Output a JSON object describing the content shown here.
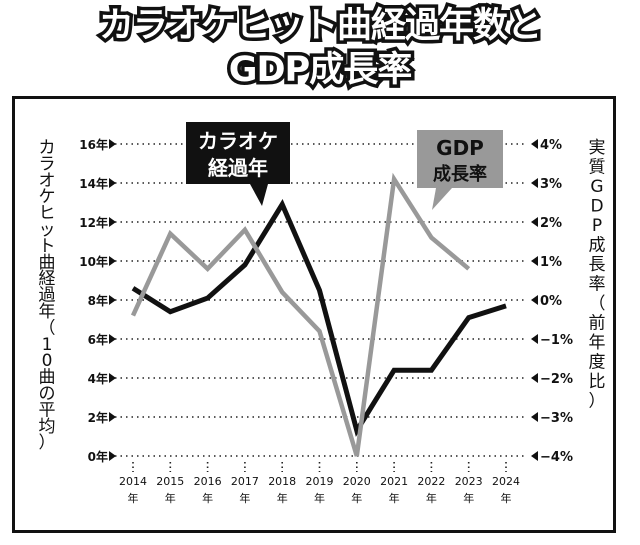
{
  "title": {
    "line1": "カラオケヒット曲経過年数と",
    "line2": "GDP成長率"
  },
  "chart_data": {
    "type": "line",
    "title": "カラオケヒット曲経過年数とGDP成長率",
    "categories": [
      "2014",
      "2015",
      "2016",
      "2017",
      "2018",
      "2019",
      "2020",
      "2021",
      "2022",
      "2023",
      "2024"
    ],
    "category_suffix": "年",
    "left_axis": {
      "label": "カラオケヒット曲経過年（10曲の平均）",
      "ticks": [
        "0年",
        "2年",
        "4年",
        "6年",
        "8年",
        "10年",
        "12年",
        "14年",
        "16年"
      ],
      "tick_values": [
        0,
        2,
        4,
        6,
        8,
        10,
        12,
        14,
        16
      ],
      "ylim": [
        0,
        16
      ]
    },
    "right_axis": {
      "label": "実質GDP成長率（前年度比）",
      "ticks": [
        "4%",
        "3%",
        "2%",
        "1%",
        "0%",
        "−1%",
        "−2%",
        "−3%",
        "−4%"
      ],
      "tick_values": [
        4,
        3,
        2,
        1,
        0,
        -1,
        -2,
        -3,
        -4
      ],
      "ylim": [
        -4,
        4
      ]
    },
    "series": [
      {
        "name": "カラオケ経過年",
        "label_line1": "カラオケ",
        "label_line2": "経過年",
        "axis": "left",
        "color": "#111111",
        "values": [
          8.6,
          7.4,
          8.1,
          9.8,
          12.9,
          8.5,
          1.3,
          4.4,
          4.4,
          7.1,
          7.7
        ]
      },
      {
        "name": "GDP成長率",
        "label_line1": "GDP",
        "label_line2": "成長率",
        "axis": "right",
        "color": "#999999",
        "values": [
          -0.4,
          1.7,
          0.8,
          1.8,
          0.2,
          -0.8,
          -4.0,
          3.1,
          1.6,
          0.8,
          null
        ]
      }
    ],
    "grid": true
  }
}
